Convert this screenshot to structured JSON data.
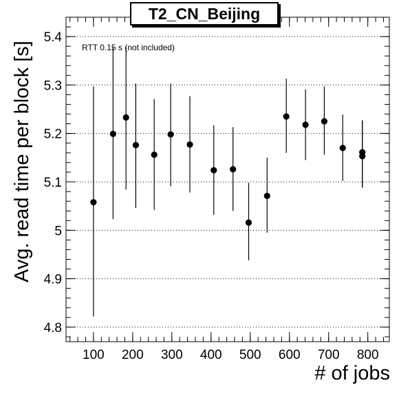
{
  "chart_data": {
    "type": "scatter",
    "title": "T2_CN_Beijing",
    "xlabel": "# of jobs",
    "ylabel": "Avg. read time per block [s]",
    "annotation": "RTT 0.15 s (not included)",
    "xlim": [
      30,
      855
    ],
    "ylim": [
      4.77,
      5.44
    ],
    "x_ticks": [
      100,
      200,
      300,
      400,
      500,
      600,
      700,
      800
    ],
    "x_tick_labels": [
      "100",
      "200",
      "300",
      "400",
      "500",
      "600",
      "700",
      "800"
    ],
    "y_ticks": [
      4.8,
      4.9,
      5.0,
      5.1,
      5.2,
      5.3,
      5.4
    ],
    "y_tick_labels": [
      "4.8",
      "4.9",
      "5",
      "5.1",
      "5.2",
      "5.3",
      "5.4"
    ],
    "grid": "horizontal dotted",
    "marker_color": "#000000",
    "points": [
      {
        "x": 100,
        "y": 5.058,
        "err_low": 4.822,
        "err_high": 5.297
      },
      {
        "x": 150,
        "y": 5.199,
        "err_low": 5.023,
        "err_high": 5.378
      },
      {
        "x": 183,
        "y": 5.233,
        "err_low": 5.084,
        "err_high": 5.378
      },
      {
        "x": 208,
        "y": 5.176,
        "err_low": 5.046,
        "err_high": 5.303
      },
      {
        "x": 255,
        "y": 5.156,
        "err_low": 5.042,
        "err_high": 5.271
      },
      {
        "x": 297,
        "y": 5.198,
        "err_low": 5.091,
        "err_high": 5.303
      },
      {
        "x": 346,
        "y": 5.177,
        "err_low": 5.078,
        "err_high": 5.277
      },
      {
        "x": 407,
        "y": 5.124,
        "err_low": 5.032,
        "err_high": 5.217
      },
      {
        "x": 456,
        "y": 5.126,
        "err_low": 5.04,
        "err_high": 5.213
      },
      {
        "x": 496,
        "y": 5.016,
        "err_low": 4.938,
        "err_high": 5.098
      },
      {
        "x": 543,
        "y": 5.071,
        "err_low": 4.995,
        "err_high": 5.15
      },
      {
        "x": 592,
        "y": 5.235,
        "err_low": 5.16,
        "err_high": 5.313
      },
      {
        "x": 641,
        "y": 5.218,
        "err_low": 5.145,
        "err_high": 5.291
      },
      {
        "x": 689,
        "y": 5.225,
        "err_low": 5.156,
        "err_high": 5.297
      },
      {
        "x": 736,
        "y": 5.17,
        "err_low": 5.102,
        "err_high": 5.239
      },
      {
        "x": 786,
        "y": 5.161,
        "err_low": 5.088,
        "err_high": 5.227
      },
      {
        "x": 786,
        "y": 5.153,
        "err_low": 5.088,
        "err_high": 5.227
      }
    ]
  }
}
